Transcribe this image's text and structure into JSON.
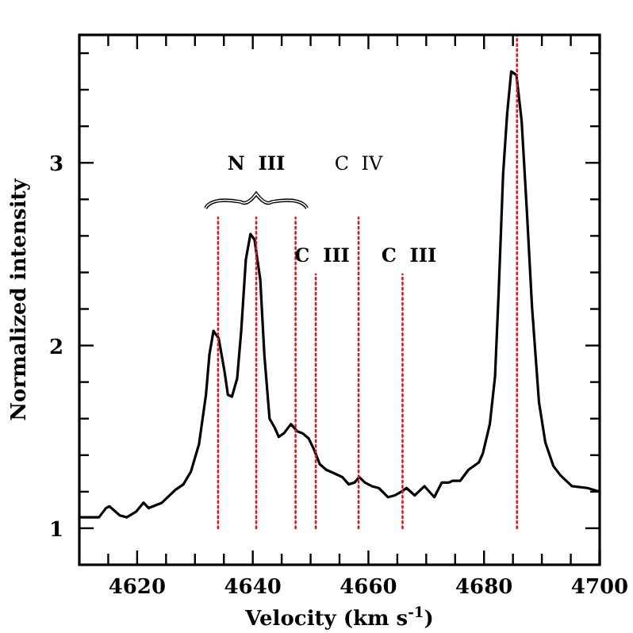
{
  "chart_data": {
    "type": "line",
    "xlabel": "Velocity (km s$^{-1}$)",
    "ylabel": "Normalized intensity",
    "xlim": [
      4610,
      4700
    ],
    "ylim": [
      0.8,
      3.7
    ],
    "xticks": [
      {
        "value": 4615,
        "label": null
      },
      4620,
      {
        "value": 4625,
        "label": null
      },
      {
        "value": 4630,
        "label": null
      },
      {
        "value": 4635,
        "label": null
      },
      4640,
      {
        "value": 4645,
        "label": null
      },
      {
        "value": 4650,
        "label": null
      },
      {
        "value": 4655,
        "label": null
      },
      4660,
      {
        "value": 4665,
        "label": null
      },
      {
        "value": 4670,
        "label": null
      },
      {
        "value": 4675,
        "label": null
      },
      4680,
      {
        "value": 4685,
        "label": null
      },
      {
        "value": 4690,
        "label": null
      },
      {
        "value": 4695,
        "label": null
      },
      4700
    ],
    "yticks": [
      1,
      {
        "value": 1.2,
        "label": null
      },
      {
        "value": 1.4,
        "label": null
      },
      {
        "value": 1.6,
        "label": null
      },
      {
        "value": 1.8,
        "label": null
      },
      2,
      {
        "value": 2.2,
        "label": null
      },
      {
        "value": 2.4,
        "label": null
      },
      {
        "value": 2.6,
        "label": null
      },
      {
        "value": 2.8,
        "label": null
      },
      3,
      {
        "value": 3.2,
        "label": null
      },
      {
        "value": 3.4,
        "label": null
      },
      {
        "value": 3.6,
        "label": null
      }
    ],
    "grid": false,
    "marker": "none",
    "series": [
      {
        "color": "#000000",
        "line_style": "solid",
        "x": [
          4610,
          4613.4,
          4614.6,
          4615.2,
          4617,
          4618.2,
          4619.8,
          4621.1,
          4622,
          4624.3,
          4626.6,
          4628,
          4629.3,
          4630.7,
          4631.9,
          4632.5,
          4633.2,
          4634.1,
          4635.1,
          4635.7,
          4636.4,
          4637.3,
          4638,
          4638.8,
          4639.6,
          4640.3,
          4641.3,
          4642,
          4642.9,
          4643.8,
          4644.5,
          4645.4,
          4646.6,
          4647.7,
          4648.6,
          4649.7,
          4650.6,
          4651.6,
          4652.7,
          4654.1,
          4655.5,
          4656.6,
          4657.6,
          4658.4,
          4659.4,
          4660.6,
          4661.8,
          4663.4,
          4664.6,
          4665.7,
          4666.6,
          4668,
          4669.7,
          4671.4,
          4672.7,
          4673.9,
          4674.6,
          4675.9,
          4677.3,
          4679.1,
          4679.8,
          4681,
          4681.9,
          4682.5,
          4683.3,
          4684,
          4684.7,
          4685.6,
          4686.5,
          4687.4,
          4688.3,
          4689.5,
          4690.6,
          4692,
          4693.2,
          4695.2,
          4697.9,
          4700
        ],
        "values": [
          1.06,
          1.06,
          1.11,
          1.12,
          1.07,
          1.06,
          1.09,
          1.14,
          1.11,
          1.14,
          1.21,
          1.24,
          1.31,
          1.46,
          1.73,
          1.95,
          2.08,
          2.04,
          1.86,
          1.73,
          1.72,
          1.82,
          2.08,
          2.47,
          2.61,
          2.58,
          2.36,
          1.95,
          1.6,
          1.55,
          1.5,
          1.52,
          1.57,
          1.53,
          1.52,
          1.49,
          1.43,
          1.35,
          1.32,
          1.3,
          1.28,
          1.24,
          1.25,
          1.28,
          1.25,
          1.23,
          1.22,
          1.17,
          1.18,
          1.2,
          1.22,
          1.18,
          1.23,
          1.17,
          1.25,
          1.25,
          1.26,
          1.26,
          1.32,
          1.36,
          1.41,
          1.57,
          1.83,
          2.27,
          2.94,
          3.27,
          3.5,
          3.48,
          3.23,
          2.74,
          2.21,
          1.69,
          1.47,
          1.34,
          1.29,
          1.23,
          1.22,
          1.2
        ]
      },
      {
        "color": "#e8141c",
        "line_style": "dotted",
        "x": [
          4634,
          4634
        ],
        "values": [
          1,
          2.7
        ]
      },
      {
        "color": "#e8141c",
        "line_style": "dotted",
        "x": [
          4640.6,
          4640.6
        ],
        "values": [
          1,
          2.7
        ]
      },
      {
        "color": "#e8141c",
        "line_style": "dotted",
        "x": [
          4647.4,
          4647.4
        ],
        "values": [
          1,
          2.7
        ]
      },
      {
        "color": "#e8141c",
        "line_style": "dotted",
        "x": [
          4650.9,
          4650.9
        ],
        "values": [
          1,
          2.39
        ]
      },
      {
        "color": "#e8141c",
        "line_style": "dotted",
        "x": [
          4658.3,
          4658.3
        ],
        "values": [
          1,
          2.7
        ]
      },
      {
        "color": "#e8141c",
        "line_style": "dotted",
        "x": [
          4665.9,
          4665.9
        ],
        "values": [
          1,
          2.39
        ]
      },
      {
        "color": "#e8141c",
        "line_style": "dotted",
        "x": [
          4685.7,
          4685.7
        ],
        "values": [
          1,
          3.7
        ]
      }
    ],
    "annotations": [
      {
        "text": "N  III",
        "x": 4640.6,
        "y": 2.7
      },
      {
        "text": "C  IV",
        "x": 4658.3,
        "y": 2.7
      },
      {
        "text": "C  III",
        "x": 4650.9,
        "y": 2.39
      },
      {
        "text": "C  III",
        "x": 4665.9,
        "y": 2.39
      }
    ]
  }
}
